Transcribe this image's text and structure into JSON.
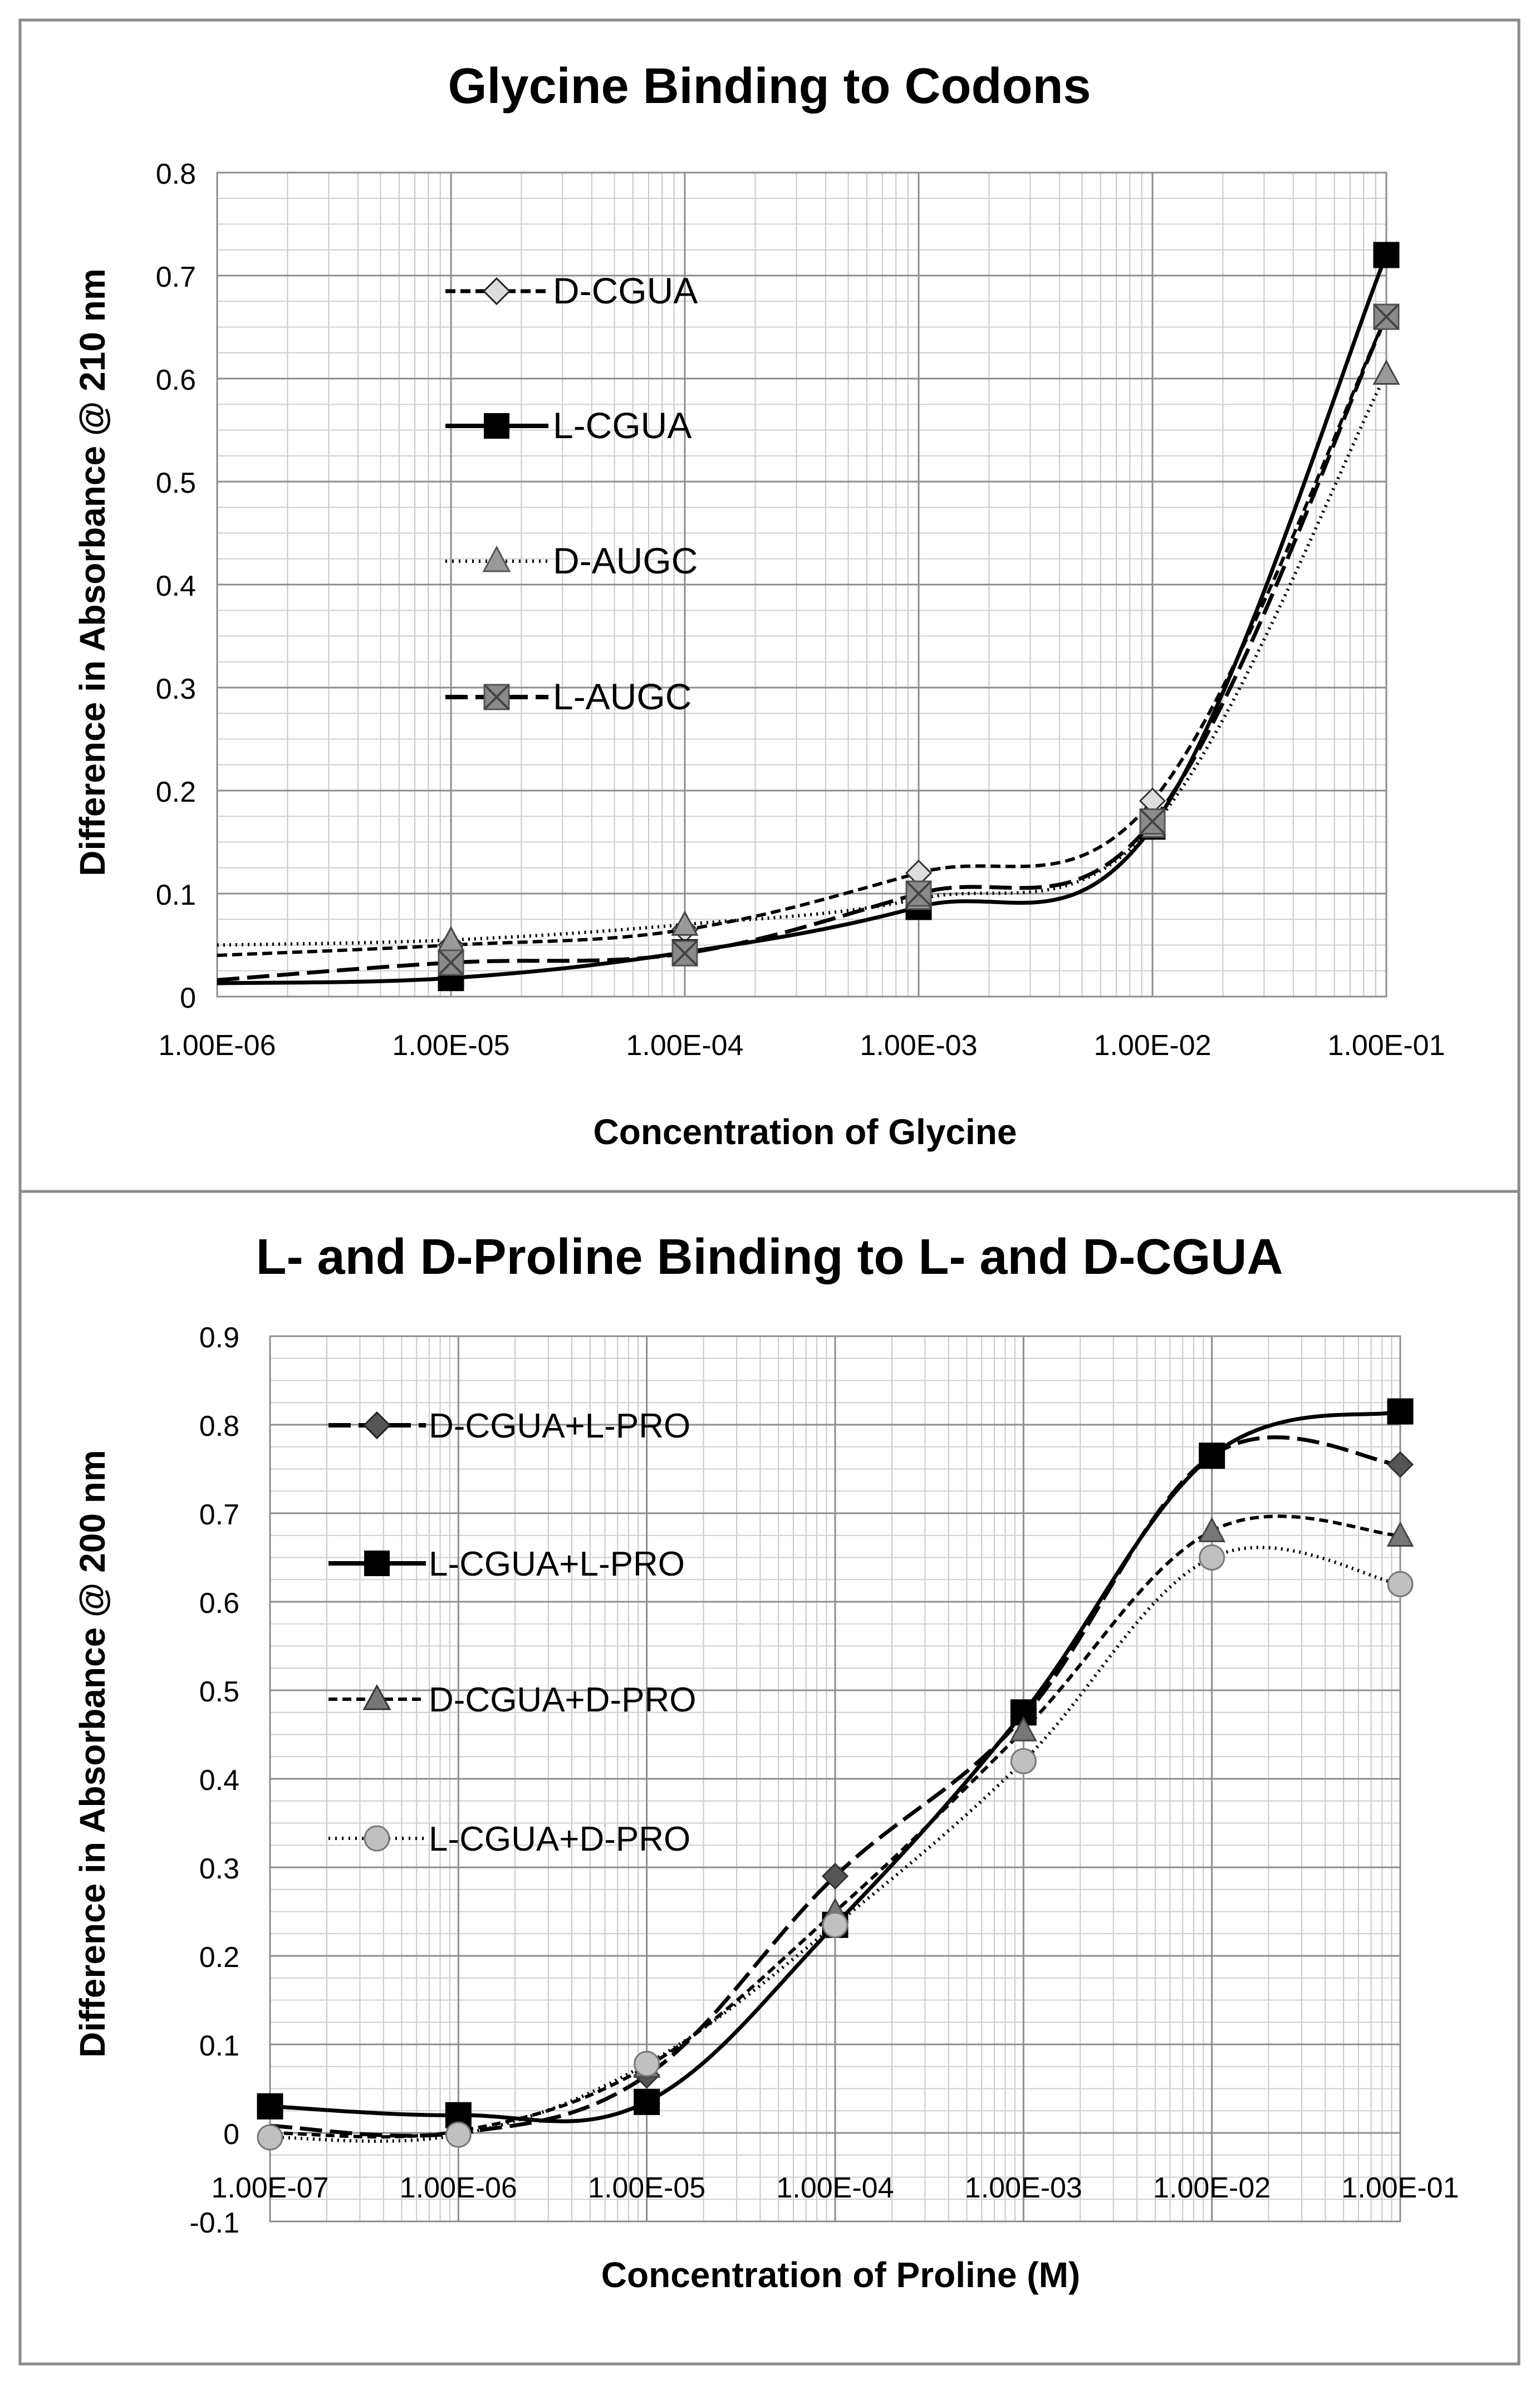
{
  "chart_data": [
    {
      "type": "line",
      "title": "Glycine Binding to Codons",
      "xlabel": "Concentration of Glycine",
      "ylabel": "Difference in Absorbance @ 210 nm",
      "xscale": "log",
      "xlim": [
        1e-06,
        0.1
      ],
      "ylim": [
        0,
        0.8
      ],
      "grid": true,
      "legend_position": "left",
      "x_tick_labels": [
        "1.00E-06",
        "1.00E-05",
        "1.00E-04",
        "1.00E-03",
        "1.00E-02",
        "1.00E-01"
      ],
      "y_tick_labels": [
        "0",
        "0.1",
        "0.2",
        "0.3",
        "0.4",
        "0.5",
        "0.6",
        "0.7",
        "0.8"
      ],
      "x": [
        1e-06,
        1e-05,
        0.0001,
        0.001,
        0.01,
        0.1
      ],
      "series": [
        {
          "name": "D-CGUA",
          "color": "#000000",
          "marker": "diamond",
          "marker_color": "#dddddd",
          "dash": "18,9",
          "stroke_width": 6,
          "values": [
            0.04,
            0.05,
            0.065,
            0.12,
            0.19,
            0.66
          ],
          "markers": [
            false,
            true,
            true,
            true,
            true,
            true
          ]
        },
        {
          "name": "L-CGUA",
          "color": "#000000",
          "marker": "square",
          "marker_color": "#000000",
          "dash": "",
          "stroke_width": 7,
          "values": [
            0.013,
            0.018,
            0.043,
            0.087,
            0.165,
            0.72
          ],
          "markers": [
            false,
            true,
            true,
            true,
            true,
            true
          ]
        },
        {
          "name": "D-AUGC",
          "color": "#000000",
          "marker": "triangle",
          "marker_color": "#999999",
          "dash": "3,8",
          "stroke_width": 6,
          "values": [
            0.05,
            0.055,
            0.07,
            0.095,
            0.165,
            0.605
          ],
          "markers": [
            false,
            true,
            true,
            true,
            true,
            true
          ]
        },
        {
          "name": "L-AUGC",
          "color": "#000000",
          "marker": "boxx",
          "marker_color": "#8a8a8a",
          "dash": "40,14",
          "stroke_width": 7,
          "values": [
            0.016,
            0.033,
            0.042,
            0.1,
            0.17,
            0.66
          ],
          "markers": [
            false,
            true,
            true,
            true,
            true,
            true
          ]
        }
      ]
    },
    {
      "type": "line",
      "title": "L- and D-Proline Binding to L- and D-CGUA",
      "xlabel": "Concentration of Proline (M)",
      "ylabel": "Difference in Absorbance @ 200 nm",
      "xscale": "log",
      "xlim": [
        1e-07,
        0.1
      ],
      "ylim": [
        -0.1,
        0.9
      ],
      "grid": true,
      "legend_position": "left",
      "x_tick_labels": [
        "1.00E-07",
        "1.00E-06",
        "1.00E-05",
        "1.00E-04",
        "1.00E-03",
        "1.00E-02",
        "1.00E-01"
      ],
      "y_tick_labels": [
        "-0.1",
        "0",
        "0.1",
        "0.2",
        "0.3",
        "0.4",
        "0.5",
        "0.6",
        "0.7",
        "0.8",
        "0.9"
      ],
      "x": [
        1e-07,
        1e-06,
        1e-05,
        0.0001,
        0.001,
        0.01,
        0.1
      ],
      "series": [
        {
          "name": "D-CGUA+L-PRO",
          "color": "#000000",
          "marker": "diamond",
          "marker_color": "#555555",
          "dash": "40,14",
          "stroke_width": 7,
          "values": [
            0.008,
            0.0,
            0.065,
            0.29,
            0.47,
            0.765,
            0.755
          ],
          "markers": [
            false,
            false,
            true,
            true,
            true,
            true,
            true
          ]
        },
        {
          "name": "L-CGUA+L-PRO",
          "color": "#000000",
          "marker": "square",
          "marker_color": "#000000",
          "dash": "",
          "stroke_width": 7,
          "values": [
            0.03,
            0.02,
            0.035,
            0.235,
            0.475,
            0.765,
            0.815
          ],
          "markers": [
            true,
            true,
            true,
            true,
            true,
            true,
            true
          ]
        },
        {
          "name": "D-CGUA+D-PRO",
          "color": "#000000",
          "marker": "triangle",
          "marker_color": "#777777",
          "dash": "16,9",
          "stroke_width": 6,
          "values": [
            0.0,
            0.002,
            0.075,
            0.25,
            0.455,
            0.68,
            0.675
          ],
          "markers": [
            false,
            false,
            true,
            true,
            true,
            true,
            true
          ]
        },
        {
          "name": "L-CGUA+D-PRO",
          "color": "#000000",
          "marker": "circle",
          "marker_color": "#c0c0c0",
          "dash": "3,8",
          "stroke_width": 6,
          "values": [
            -0.005,
            -0.002,
            0.078,
            0.235,
            0.42,
            0.65,
            0.62
          ],
          "markers": [
            true,
            true,
            true,
            true,
            true,
            true,
            true
          ]
        }
      ]
    }
  ]
}
